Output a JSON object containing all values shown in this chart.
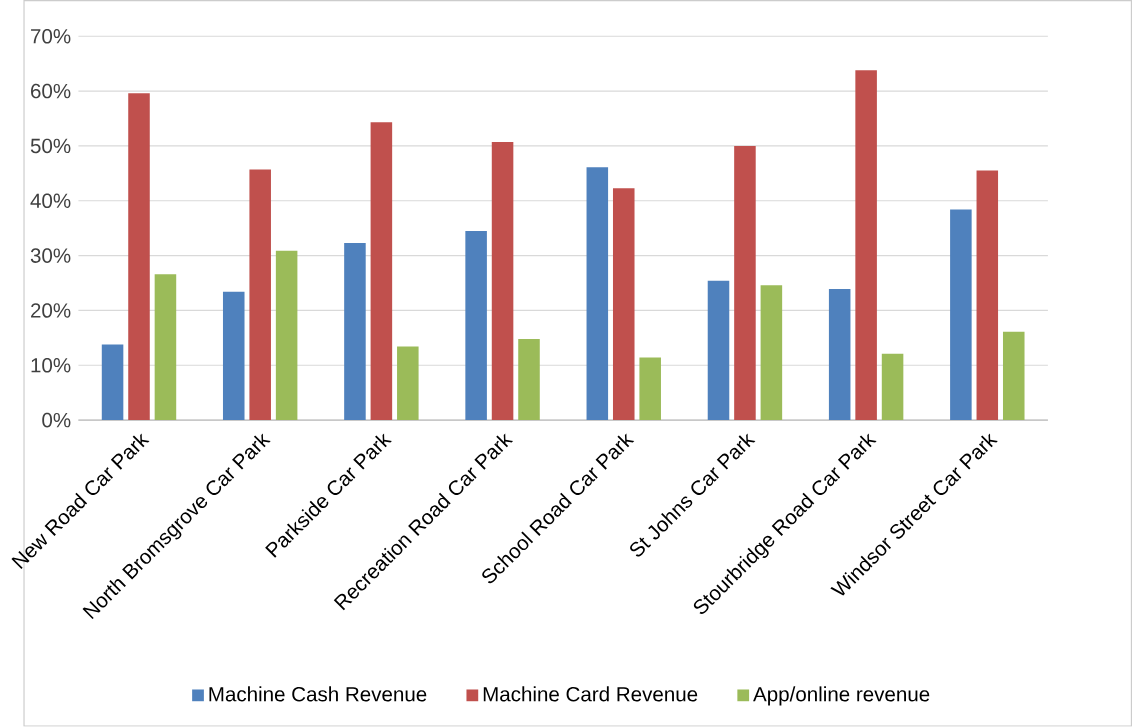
{
  "chart_data": {
    "type": "bar",
    "categories": [
      "New Road Car Park",
      "North Bromsgrove Car Park",
      "Parkside Car Park",
      "Recreation Road Car Park",
      "School Road Car Park",
      "St Johns Car Park",
      "Stourbridge Road Car Park",
      "Windsor Street Car Park"
    ],
    "series": [
      {
        "name": "Machine Cash Revenue",
        "color": "#4f81bd",
        "values": [
          13.8,
          23.4,
          32.3,
          34.5,
          46.1,
          25.4,
          23.9,
          38.4
        ]
      },
      {
        "name": "Machine Card Revenue",
        "color": "#c0504d",
        "values": [
          59.6,
          45.7,
          54.3,
          50.7,
          42.3,
          50.0,
          63.8,
          45.5
        ]
      },
      {
        "name": "App/online revenue",
        "color": "#9bbb59",
        "values": [
          26.6,
          30.9,
          13.4,
          14.8,
          11.4,
          24.6,
          12.1,
          16.1
        ]
      }
    ],
    "ylim": [
      0,
      70
    ],
    "yticks": [
      {
        "value": 0,
        "label": "0%"
      },
      {
        "value": 10,
        "label": "10%"
      },
      {
        "value": 20,
        "label": "20%"
      },
      {
        "value": 30,
        "label": "30%"
      },
      {
        "value": 40,
        "label": "40%"
      },
      {
        "value": 50,
        "label": "50%"
      },
      {
        "value": 60,
        "label": "60%"
      },
      {
        "value": 70,
        "label": "70%"
      }
    ],
    "grid": "y",
    "legend": "bottom"
  }
}
